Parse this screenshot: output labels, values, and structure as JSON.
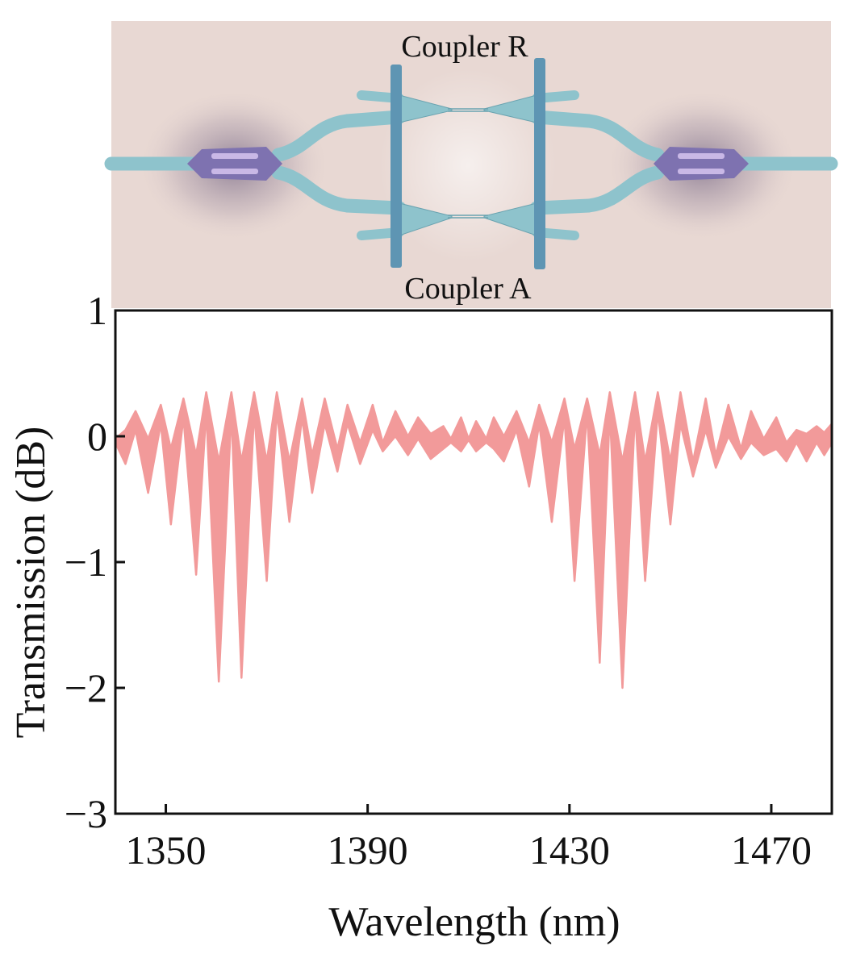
{
  "device": {
    "label_top": "Coupler R",
    "label_bottom": "Coupler A",
    "colors": {
      "background": "#e8d8d3",
      "waveguide": "#8ec3cc",
      "waveguide_edge": "#6aa3b0",
      "bar": "#5e95b3",
      "splitter": "#7e72b0",
      "splitter_core": "#c9b8e6"
    }
  },
  "chart_data": {
    "type": "line",
    "title": "",
    "xlabel": "Wavelength (nm)",
    "ylabel": "Transmission (dB)",
    "xlim": [
      1340,
      1482
    ],
    "ylim": [
      -3,
      1
    ],
    "xticks": [
      1350,
      1390,
      1430,
      1470
    ],
    "yticks": [
      1,
      0,
      -1,
      -2,
      -3
    ],
    "ytick_labels": [
      "1",
      "0",
      "−1",
      "−2",
      "−3"
    ],
    "grid": false,
    "series": [
      {
        "name": "Transmission",
        "color": "#f29a9a",
        "upper_envelope": {
          "x": [
            1340,
            1342,
            1344,
            1346.5,
            1349,
            1351,
            1353.5,
            1356,
            1358,
            1360.5,
            1363,
            1365,
            1367.5,
            1370,
            1372,
            1374.5,
            1377,
            1379,
            1381.5,
            1384,
            1386,
            1388.5,
            1391,
            1393,
            1395.5,
            1398,
            1400,
            1402.5,
            1405,
            1406.5,
            1408.5,
            1410,
            1411.5,
            1413.5,
            1415,
            1417,
            1419.5,
            1422,
            1424,
            1426.5,
            1429,
            1431,
            1433.5,
            1436,
            1438,
            1440.5,
            1443,
            1445,
            1447.5,
            1450,
            1452,
            1454.5,
            1457,
            1459,
            1461.5,
            1464,
            1466,
            1468.5,
            1471,
            1473,
            1475,
            1477,
            1479,
            1480.5,
            1482
          ],
          "y": [
            -0.02,
            0.05,
            0.2,
            -0.02,
            0.25,
            -0.1,
            0.3,
            -0.15,
            0.35,
            -0.2,
            0.35,
            -0.2,
            0.35,
            -0.2,
            0.35,
            -0.2,
            0.3,
            -0.15,
            0.3,
            -0.1,
            0.25,
            -0.05,
            0.25,
            -0.05,
            0.2,
            0.0,
            0.15,
            0.02,
            0.08,
            -0.02,
            0.15,
            -0.02,
            0.12,
            -0.02,
            0.15,
            0.0,
            0.2,
            -0.05,
            0.25,
            -0.05,
            0.3,
            -0.1,
            0.3,
            -0.15,
            0.35,
            -0.2,
            0.35,
            -0.2,
            0.35,
            -0.2,
            0.35,
            -0.2,
            0.3,
            -0.15,
            0.25,
            -0.1,
            0.2,
            -0.02,
            0.15,
            -0.05,
            0.05,
            0.02,
            0.08,
            0.03,
            0.1
          ]
        },
        "lower_envelope": {
          "x": [
            1340,
            1342,
            1344,
            1346.5,
            1349,
            1351,
            1353.5,
            1356,
            1358,
            1360.5,
            1363,
            1365,
            1367.5,
            1370,
            1372,
            1374.5,
            1377,
            1379,
            1381.5,
            1384,
            1386,
            1388.5,
            1391,
            1393,
            1395.5,
            1398,
            1400,
            1402.5,
            1405,
            1406.5,
            1408.5,
            1410,
            1411.5,
            1413.5,
            1415,
            1417,
            1419.5,
            1422,
            1424,
            1426.5,
            1429,
            1431,
            1433.5,
            1436,
            1438,
            1440.5,
            1443,
            1445,
            1447.5,
            1450,
            1452,
            1454.5,
            1457,
            1459,
            1461.5,
            1464,
            1466,
            1468.5,
            1471,
            1473,
            1475,
            1477,
            1479,
            1480.5,
            1482
          ],
          "y": [
            -0.05,
            -0.22,
            0.05,
            -0.45,
            0.1,
            -0.7,
            0.15,
            -1.1,
            0.2,
            -1.95,
            0.2,
            -1.92,
            0.2,
            -1.15,
            0.2,
            -0.68,
            0.15,
            -0.45,
            0.1,
            -0.28,
            0.1,
            -0.22,
            0.05,
            -0.12,
            0.0,
            -0.15,
            -0.02,
            -0.18,
            -0.1,
            -0.05,
            -0.12,
            -0.03,
            -0.12,
            -0.05,
            -0.1,
            -0.2,
            0.05,
            -0.4,
            0.1,
            -0.68,
            0.15,
            -1.15,
            0.2,
            -1.8,
            0.2,
            -2.0,
            0.2,
            -1.15,
            0.2,
            -0.7,
            0.1,
            -0.32,
            0.05,
            -0.25,
            0.0,
            -0.18,
            -0.05,
            -0.15,
            -0.1,
            -0.2,
            -0.05,
            -0.2,
            -0.05,
            -0.15,
            -0.05
          ]
        }
      }
    ]
  }
}
